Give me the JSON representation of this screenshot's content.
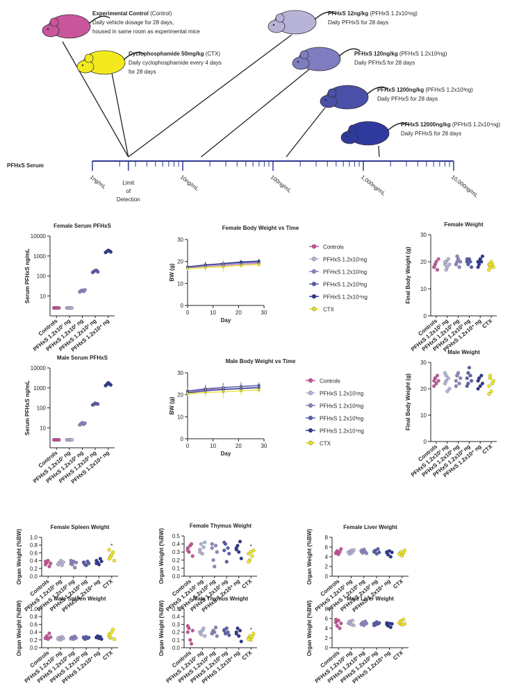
{
  "chart_data": [
    {
      "type": "timeline",
      "label": "PFHxS Serum",
      "log": true,
      "xlim": [
        1,
        10000
      ],
      "xticks": [
        {
          "value": 1,
          "label": "1ng/mL"
        },
        {
          "value": 10,
          "label": "10ng/mL"
        },
        {
          "value": 100,
          "label": "100ng/mL"
        },
        {
          "value": 1000,
          "label": "1,000ng/mL"
        },
        {
          "value": 10000,
          "label": "10,000ng/mL"
        }
      ],
      "lod": {
        "value": 2.5,
        "label": [
          "Limit",
          "of",
          "Detection"
        ]
      },
      "groups": [
        {
          "title": "Experimental Control",
          "tag": " (Control)",
          "desc": [
            "Daily vehicle dosage for 28 days,",
            "housed in same room as experimental mice"
          ],
          "color": "#c9559b",
          "serum": 2.5
        },
        {
          "title": "Cyclophosphamide 50mg/kg",
          "tag": " (CTX)",
          "desc": [
            "Daily cyclophosphamide every 4 days",
            "for 28 days"
          ],
          "color": "#f2ea1f",
          "serum": 2.5
        },
        {
          "title": "PFHxS 12ng/kg",
          "tag": " (PFHxS 1.2x10¹ng)",
          "desc": [
            "Daily PFHxS for 28 days"
          ],
          "color": "#b8b4d8",
          "serum": 2.5
        },
        {
          "title": "PFHxS 120ng/kg",
          "tag": " (PFHxS 1.2x10²ng)",
          "desc": [
            "Daily PFHxS for 28 days"
          ],
          "color": "#7f7dc0",
          "serum": 16
        },
        {
          "title": "PFHxS 1200ng/kg",
          "tag": " (PFHxS 1.2x10³ng)",
          "desc": [
            "Daily PFHxS for 28 days"
          ],
          "color": "#4a4fa8",
          "serum": 140
        },
        {
          "title": "PFHxS 12000ng/kg",
          "tag": " (PFHxS 1.2x10⁴ng)",
          "desc": [
            "Daily PFHxS for 28 days"
          ],
          "color": "#2f3a9e",
          "serum": 1500
        }
      ]
    },
    {
      "type": "dot",
      "title": "Female Serum PFHxS",
      "ylabel": "Serum PFHxS ng/mL",
      "log": true,
      "ylim": [
        1,
        10000
      ],
      "yticks": [
        10,
        100,
        1000,
        10000
      ],
      "categories": [
        "Controls",
        "PFHxS 1.2x10¹ ng",
        "PFHxS 1.2x10² ng",
        "PFHxS 1.2x10³ ng",
        "PFHxS 1.2x10⁴ ng"
      ],
      "colors": [
        "#c9559b",
        "#b8b4d8",
        "#8a86c4",
        "#5a5fb0",
        "#2e3890"
      ],
      "values": [
        [
          2.5,
          2.5,
          2.5,
          2.5,
          2.5
        ],
        [
          2.5,
          2.5,
          2.5,
          2.5,
          2.5
        ],
        [
          16,
          18,
          19,
          17,
          20
        ],
        [
          150,
          170,
          185,
          190,
          160
        ],
        [
          1500,
          1700,
          1900,
          1800,
          1600
        ]
      ]
    },
    {
      "type": "line",
      "title": "Female Body Weight vs Time",
      "xlabel": "Day",
      "ylabel": "BW (g)",
      "x": [
        0,
        7,
        14,
        21,
        28
      ],
      "xlim": [
        0,
        30
      ],
      "xticks": [
        0,
        10,
        20,
        30
      ],
      "ylim": [
        0,
        30
      ],
      "yticks": [
        0,
        10,
        20,
        30
      ],
      "legend": "right",
      "series": [
        {
          "name": "Controls",
          "color": "#c9559b",
          "values": [
            17,
            17.8,
            18.2,
            18.8,
            19.2
          ],
          "errors": [
            1,
            1,
            1.2,
            1,
            1
          ]
        },
        {
          "name": "PFHxS 1.2x10¹ng",
          "color": "#b8b4d8",
          "values": [
            17.2,
            18,
            18.5,
            19,
            19.5
          ],
          "errors": [
            1,
            1.2,
            1.5,
            1,
            1
          ]
        },
        {
          "name": "PFHxS 1.2x10²ng",
          "color": "#8a86c4",
          "values": [
            17.5,
            18.3,
            18.8,
            19.4,
            19.8
          ],
          "errors": [
            1,
            1.2,
            1.2,
            1,
            1
          ]
        },
        {
          "name": "PFHxS 1.2x10³ng",
          "color": "#5a5fb0",
          "values": [
            17.6,
            18.5,
            19,
            19.6,
            20
          ],
          "errors": [
            1,
            1.5,
            1.2,
            1,
            1
          ]
        },
        {
          "name": "PFHxS 1.2x10⁴ng",
          "color": "#2e3890",
          "values": [
            17.4,
            18.4,
            19.1,
            19.8,
            20.2
          ],
          "errors": [
            1,
            1.3,
            1.2,
            1,
            1
          ]
        },
        {
          "name": "CTX",
          "color": "#e8e020",
          "values": [
            16.8,
            17.2,
            17.6,
            18.2,
            18.6
          ],
          "errors": [
            1,
            1.5,
            2.5,
            1.2,
            1
          ]
        }
      ]
    },
    {
      "type": "dot",
      "title": "Female Weight",
      "ylabel": "Final Body Weight (g)",
      "ylim": [
        0,
        30
      ],
      "yticks": [
        0,
        10,
        20,
        30
      ],
      "categories": [
        "Controls",
        "PFHxS 1.2x10¹ ng",
        "PFHxS 1.2x10² ng",
        "PFHxS 1.2x10³ ng",
        "PFHxS 1.2x10⁴ ng",
        "CTX"
      ],
      "colors": [
        "#c9559b",
        "#b8b4d8",
        "#8a86c4",
        "#5a5fb0",
        "#2e3890",
        "#f2ea1f"
      ],
      "values": [
        [
          18,
          19,
          20,
          17,
          21,
          18,
          19
        ],
        [
          19,
          20,
          18,
          21,
          19,
          20,
          17
        ],
        [
          19,
          20,
          21,
          18,
          20,
          19,
          22
        ],
        [
          20,
          19,
          21,
          20,
          18,
          21,
          20
        ],
        [
          20,
          19,
          21,
          20,
          22,
          18,
          20
        ],
        [
          19,
          18,
          20,
          19,
          18,
          17,
          19
        ]
      ]
    },
    {
      "type": "dot",
      "title": "Male Serum PFHxS",
      "ylabel": "Serum PFHxS ng/mL",
      "log": true,
      "ylim": [
        1,
        10000
      ],
      "yticks": [
        10,
        100,
        1000,
        10000
      ],
      "categories": [
        "Controls",
        "PFHxS 1.2x10¹ ng",
        "PFHxS 1.2x10² ng",
        "PFHxS 1.2x10³ ng",
        "PFHxS 1.2x10⁴ ng"
      ],
      "colors": [
        "#c9559b",
        "#b8b4d8",
        "#8a86c4",
        "#5a5fb0",
        "#2e3890"
      ],
      "values": [
        [
          2.5,
          2.5,
          2.5,
          2.5,
          2.5
        ],
        [
          2.5,
          2.5,
          2.5,
          2.5,
          2.5
        ],
        [
          14,
          16,
          18,
          15,
          17
        ],
        [
          140,
          150,
          170,
          160,
          155
        ],
        [
          1300,
          1500,
          1800,
          1600,
          1400
        ]
      ]
    },
    {
      "type": "line",
      "title": "Male Body Weight vs Time",
      "xlabel": "Day",
      "ylabel": "BW (g)",
      "x": [
        0,
        7,
        14,
        21,
        28
      ],
      "xlim": [
        0,
        30
      ],
      "xticks": [
        0,
        10,
        20,
        30
      ],
      "ylim": [
        0,
        30
      ],
      "yticks": [
        0,
        10,
        20,
        30
      ],
      "legend": "right",
      "series": [
        {
          "name": "Controls",
          "color": "#c9559b",
          "values": [
            21.5,
            22.2,
            22.6,
            23,
            23.4
          ],
          "errors": [
            1,
            1.5,
            1.5,
            1.2,
            1.2
          ]
        },
        {
          "name": "PFHxS 1.2x10¹ng",
          "color": "#b8b4d8",
          "values": [
            21,
            22,
            22.5,
            23.2,
            23.6
          ],
          "errors": [
            1.5,
            2,
            2.5,
            2,
            1.5
          ]
        },
        {
          "name": "PFHxS 1.2x10²ng",
          "color": "#8a86c4",
          "values": [
            21.8,
            22.8,
            23.4,
            23.8,
            24.2
          ],
          "errors": [
            1.2,
            1.5,
            2,
            1.5,
            1.5
          ]
        },
        {
          "name": "PFHxS 1.2x10³ng",
          "color": "#5a5fb0",
          "values": [
            21.6,
            22.6,
            23.2,
            23.8,
            24.3
          ],
          "errors": [
            1,
            2,
            2,
            2,
            1.5
          ]
        },
        {
          "name": "PFHxS 1.2x10⁴ng",
          "color": "#2e3890",
          "values": [
            20.8,
            21.8,
            22.4,
            22.8,
            23.2
          ],
          "errors": [
            1,
            1.5,
            1.5,
            1.5,
            1.2
          ]
        },
        {
          "name": "CTX",
          "color": "#e8e020",
          "values": [
            20.5,
            21,
            21.4,
            21.8,
            22.2
          ],
          "errors": [
            1,
            2,
            3,
            2,
            1.5
          ]
        }
      ]
    },
    {
      "type": "dot",
      "title": "Male Weight",
      "ylabel": "Final Body Weight (g)",
      "ylim": [
        0,
        30
      ],
      "yticks": [
        0,
        10,
        20,
        30
      ],
      "categories": [
        "Controls",
        "PFHxS 1.2x10¹ ng",
        "PFHxS 1.2x10² ng",
        "PFHxS 1.2x10³ ng",
        "PFHxS 1.2x10⁴ ng",
        "CTX"
      ],
      "colors": [
        "#c9559b",
        "#b8b4d8",
        "#8a86c4",
        "#5a5fb0",
        "#2e3890",
        "#f2ea1f"
      ],
      "values": [
        [
          23,
          24,
          22,
          25,
          23,
          21,
          24
        ],
        [
          22,
          25,
          19,
          24,
          20,
          26,
          23
        ],
        [
          23,
          25,
          26,
          22,
          24,
          21,
          25
        ],
        [
          24,
          22,
          28,
          25,
          23,
          21,
          26
        ],
        [
          23,
          24,
          21,
          25,
          22,
          20,
          24
        ],
        [
          21,
          24,
          19,
          22,
          23,
          18,
          25
        ]
      ]
    },
    {
      "type": "dot",
      "title": "Female Spleen Weight",
      "ylabel": "Organ  Weight (%BW)",
      "ylim": [
        0,
        1
      ],
      "yticks": [
        {
          "value": 0,
          "label": "0.0"
        },
        0.2,
        0.4,
        0.6,
        0.8,
        {
          "value": 1,
          "label": "1.0"
        }
      ],
      "categories": [
        "Controls",
        "PFHxS 1.2x10¹ ng",
        "PFHxS 1.2x10² ng",
        "PFHxS 1.2x10³ ng",
        "PFHxS 1.2x10⁴ ng",
        "CTX"
      ],
      "colors": [
        "#c9559b",
        "#b8b4d8",
        "#8a86c4",
        "#5a5fb0",
        "#2e3890",
        "#f2ea1f"
      ],
      "values": [
        [
          0.3,
          0.35,
          0.4,
          0.25,
          0.33,
          0.38
        ],
        [
          0.3,
          0.35,
          0.4,
          0.28,
          0.36,
          0.32
        ],
        [
          0.32,
          0.3,
          0.38,
          0.22,
          0.35,
          0.4
        ],
        [
          0.35,
          0.3,
          0.28,
          0.38,
          0.33,
          0.36
        ],
        [
          0.4,
          0.35,
          0.3,
          0.45,
          0.38,
          0.33
        ],
        [
          0.45,
          0.5,
          0.55,
          0.62,
          0.4,
          0.68,
          0.48
        ]
      ],
      "annotations": [
        {
          "text": "*",
          "category": "CTX"
        }
      ]
    },
    {
      "type": "dot",
      "title": "Female Thymus Weight",
      "ylabel": "Organ  Weight (%BW)",
      "ylim": [
        0,
        0.5
      ],
      "yticks": [
        {
          "value": 0,
          "label": "0.0"
        },
        0.1,
        0.2,
        0.3,
        0.4,
        0.5
      ],
      "categories": [
        "Controls",
        "PFHxS 1.2x10¹ ng",
        "PFHxS 1.2x10² ng",
        "PFHxS 1.2x10³ ng",
        "PFHxS 1.2x10⁴ ng",
        "CTX"
      ],
      "colors": [
        "#c9559b",
        "#b8b4d8",
        "#8a86c4",
        "#5a5fb0",
        "#2e3890",
        "#f2ea1f"
      ],
      "values": [
        [
          0.35,
          0.3,
          0.38,
          0.4,
          0.25,
          0.32
        ],
        [
          0.33,
          0.4,
          0.28,
          0.36,
          0.42,
          0.3
        ],
        [
          0.35,
          0.2,
          0.12,
          0.38,
          0.3,
          0.4
        ],
        [
          0.32,
          0.4,
          0.18,
          0.35,
          0.28,
          0.42
        ],
        [
          0.35,
          0.38,
          0.3,
          0.43,
          0.22,
          0.33
        ],
        [
          0.28,
          0.2,
          0.3,
          0.25,
          0.32,
          0.18
        ]
      ],
      "annotations": [
        {
          "text": "*",
          "category": "CTX"
        }
      ]
    },
    {
      "type": "dot",
      "title": "Female Liver Weight",
      "ylabel": "Organ  Weight (%BW)",
      "ylim": [
        0,
        8
      ],
      "yticks": [
        0,
        2,
        4,
        6,
        8
      ],
      "categories": [
        "Controls",
        "PFHxS 1.2x10¹ ng",
        "PFHxS 1.2x10² ng",
        "PFHxS 1.2x10³ ng",
        "PFHxS 1.2x10⁴ ng",
        "CTX"
      ],
      "colors": [
        "#c9559b",
        "#b8b4d8",
        "#8a86c4",
        "#5a5fb0",
        "#2e3890",
        "#f2ea1f"
      ],
      "values": [
        [
          4.8,
          5.2,
          4.5,
          5,
          5.6,
          4.7
        ],
        [
          5,
          4.6,
          5.3,
          4.9,
          5.4,
          4.8
        ],
        [
          5.1,
          4.8,
          5.5,
          5,
          4.7,
          5.3
        ],
        [
          5,
          5.3,
          4.6,
          5.6,
          4.9,
          5.1
        ],
        [
          4.8,
          4.4,
          5.2,
          4,
          4.9,
          5
        ],
        [
          4.6,
          5,
          4.2,
          4.8,
          5.3,
          4.5
        ]
      ]
    },
    {
      "type": "dot",
      "title": "Male Spleen Weight",
      "ylabel": "Organ  Weight (%BW)",
      "ylim": [
        0,
        1
      ],
      "yticks": [
        {
          "value": 0,
          "label": "0.0"
        },
        0.2,
        0.4,
        0.6,
        0.8,
        {
          "value": 1,
          "label": "1.0"
        }
      ],
      "categories": [
        "Controls",
        "PFHxS 1.2x10¹ ng",
        "PFHxS 1.2x10² ng",
        "PFHxS 1.2x10³ ng",
        "PFHxS 1.2x10⁴ ng",
        "CTX"
      ],
      "colors": [
        "#c9559b",
        "#b8b4d8",
        "#8a86c4",
        "#5a5fb0",
        "#2e3890",
        "#f2ea1f"
      ],
      "values": [
        [
          0.25,
          0.3,
          0.22,
          0.37,
          0.27,
          0.24
        ],
        [
          0.22,
          0.26,
          0.2,
          0.28,
          0.24,
          0.25
        ],
        [
          0.24,
          0.27,
          0.22,
          0.29,
          0.25,
          0.23
        ],
        [
          0.25,
          0.22,
          0.28,
          0.24,
          0.26,
          0.27
        ],
        [
          0.26,
          0.3,
          0.24,
          0.28,
          0.22,
          0.27
        ],
        [
          0.3,
          0.25,
          0.4,
          0.47,
          0.22,
          0.35,
          0.28
        ]
      ]
    },
    {
      "type": "dot",
      "title": "Male Thymus Weight",
      "ylabel": "Organ  Weight (%BW)",
      "ylim": [
        0,
        0.5
      ],
      "yticks": [
        {
          "value": 0,
          "label": "0.0"
        },
        0.1,
        0.2,
        0.3,
        0.4,
        0.5
      ],
      "categories": [
        "Controls",
        "PFHxS 1.2x10¹ ng",
        "PFHxS 1.2x10² ng",
        "PFHxS 1.2x10³ ng",
        "PFHxS 1.2x10⁴ ng",
        "CTX"
      ],
      "colors": [
        "#c9559b",
        "#b8b4d8",
        "#8a86c4",
        "#5a5fb0",
        "#2e3890",
        "#f2ea1f"
      ],
      "values": [
        [
          0.2,
          0.25,
          0.1,
          0.05,
          0.22,
          0.28
        ],
        [
          0.2,
          0.17,
          0.22,
          0.25,
          0.15,
          0.2
        ],
        [
          0.18,
          0.22,
          0.2,
          0.26,
          0.15,
          0.19
        ],
        [
          0.22,
          0.18,
          0.25,
          0.2,
          0.16,
          0.23
        ],
        [
          0.2,
          0.25,
          0.15,
          0.22,
          0.08,
          0.18
        ],
        [
          0.12,
          0.15,
          0.1,
          0.14,
          0.18,
          0.11
        ]
      ],
      "annotations": [
        {
          "text": "*",
          "category": "CTX"
        }
      ]
    },
    {
      "type": "dot",
      "title": "Male Liver Weight",
      "ylabel": "Organ  Weight (%BW)",
      "ylim": [
        0,
        8
      ],
      "yticks": [
        0,
        2,
        4,
        6,
        8
      ],
      "categories": [
        "Controls",
        "PFHxS 1.2x10¹ ng",
        "PFHxS 1.2x10² ng",
        "PFHxS 1.2x10³ ng",
        "PFHxS 1.2x10⁴ ng",
        "CTX"
      ],
      "colors": [
        "#c9559b",
        "#b8b4d8",
        "#8a86c4",
        "#5a5fb0",
        "#2e3890",
        "#f2ea1f"
      ],
      "values": [
        [
          5.2,
          4.5,
          5.6,
          4,
          5,
          5.8
        ],
        [
          5,
          5.4,
          4.8,
          5.6,
          4.6,
          5.2
        ],
        [
          4.9,
          5.2,
          4.6,
          5.4,
          5,
          4.8
        ],
        [
          5,
          4.7,
          5.3,
          4.9,
          5.1,
          4.6
        ],
        [
          4.8,
          4.5,
          5,
          4.2,
          4.9,
          5.1
        ],
        [
          5,
          5.5,
          4.7,
          5.8,
          4.9,
          5.2
        ]
      ]
    }
  ]
}
